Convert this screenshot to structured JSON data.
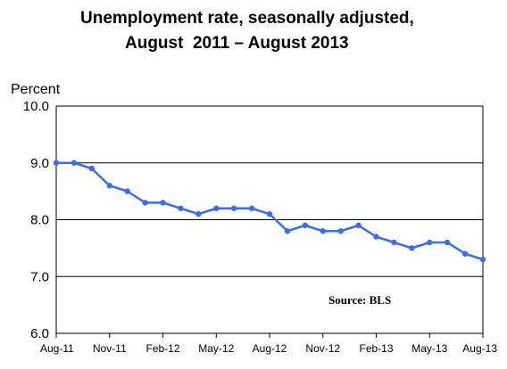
{
  "chart_data": {
    "type": "line",
    "title": "Unemployment rate, seasonally adjusted,",
    "subtitle": "August  2011 – August 2013",
    "ylabel": "Percent",
    "xlabel": "",
    "ylim": [
      6.0,
      10.0
    ],
    "yticks": [
      "6.0",
      "7.0",
      "8.0",
      "9.0",
      "10.0"
    ],
    "x": [
      "Aug-11",
      "Sep-11",
      "Oct-11",
      "Nov-11",
      "Dec-11",
      "Jan-12",
      "Feb-12",
      "Mar-12",
      "Apr-12",
      "May-12",
      "Jun-12",
      "Jul-12",
      "Aug-12",
      "Sep-12",
      "Oct-12",
      "Nov-12",
      "Dec-12",
      "Jan-13",
      "Feb-13",
      "Mar-13",
      "Apr-13",
      "May-13",
      "Jun-13",
      "Jul-13",
      "Aug-13"
    ],
    "xtick_labels": [
      "Aug-11",
      "Nov-11",
      "Feb-12",
      "May-12",
      "Aug-12",
      "Nov-12",
      "Feb-13",
      "May-13",
      "Aug-13"
    ],
    "series": [
      {
        "values": [
          9.0,
          9.0,
          8.9,
          8.6,
          8.5,
          8.3,
          8.3,
          8.2,
          8.1,
          8.2,
          8.2,
          8.2,
          8.1,
          7.8,
          7.9,
          7.8,
          7.8,
          7.9,
          7.7,
          7.6,
          7.5,
          7.6,
          7.6,
          7.4,
          7.3
        ],
        "color": "#3c6ee6"
      }
    ],
    "grid": "horizontal",
    "annotation": "Source: BLS"
  }
}
